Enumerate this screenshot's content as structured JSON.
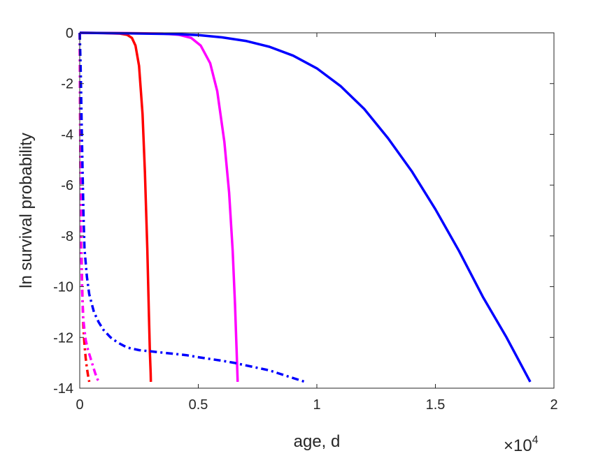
{
  "chart_data": {
    "type": "line",
    "title": "",
    "xlabel": "age, d",
    "ylabel": "ln survival probability",
    "x_multiplier": {
      "base": "×10",
      "exponent": "4"
    },
    "xlim": [
      0,
      20000
    ],
    "ylim": [
      -14,
      0
    ],
    "xticks": [
      0,
      5000,
      10000,
      15000,
      20000
    ],
    "xtick_labels": [
      "0",
      "0.5",
      "1",
      "1.5",
      "2"
    ],
    "yticks": [
      0,
      -2,
      -4,
      -6,
      -8,
      -10,
      -12,
      -14
    ],
    "ytick_labels": [
      "0",
      "-2",
      "-4",
      "-6",
      "-8",
      "-10",
      "-12",
      "-14"
    ],
    "grid": false,
    "series": [
      {
        "color": "#ff0000",
        "style": "solid",
        "x": [
          0,
          1000,
          1700,
          2000,
          2200,
          2350,
          2500,
          2650,
          2750,
          2850,
          2920,
          2960,
          2990,
          3000
        ],
        "y": [
          0,
          -0.01,
          -0.03,
          -0.08,
          -0.2,
          -0.5,
          -1.3,
          -3.2,
          -5.5,
          -8.5,
          -11.2,
          -12.6,
          -13.4,
          -13.75
        ]
      },
      {
        "color": "#ff00ff",
        "style": "solid",
        "x": [
          0,
          2000,
          3500,
          4200,
          4700,
          5100,
          5500,
          5800,
          6100,
          6300,
          6450,
          6550,
          6620,
          6660
        ],
        "y": [
          0,
          -0.01,
          -0.03,
          -0.08,
          -0.2,
          -0.5,
          -1.2,
          -2.3,
          -4.3,
          -6.3,
          -8.6,
          -10.7,
          -12.6,
          -13.75
        ]
      },
      {
        "color": "#0000ff",
        "style": "solid",
        "x": [
          0,
          2000,
          4000,
          5000,
          6000,
          7000,
          8000,
          9000,
          10000,
          11000,
          12000,
          13000,
          14000,
          15000,
          16000,
          17000,
          18000,
          19000
        ],
        "y": [
          0,
          -0.02,
          -0.05,
          -0.09,
          -0.18,
          -0.32,
          -0.55,
          -0.9,
          -1.4,
          -2.1,
          -3.0,
          -4.15,
          -5.45,
          -6.95,
          -8.6,
          -10.4,
          -12.0,
          -13.75
        ]
      },
      {
        "color": "#ff0000",
        "style": "dashdot",
        "x": [
          0,
          10,
          30,
          60,
          100,
          150,
          200,
          250,
          300,
          350,
          400
        ],
        "y": [
          0,
          -2,
          -5,
          -8,
          -10,
          -11.5,
          -12.3,
          -12.8,
          -13.2,
          -13.5,
          -13.75
        ]
      },
      {
        "color": "#ff00ff",
        "style": "dashdot",
        "x": [
          0,
          10,
          30,
          60,
          100,
          150,
          250,
          350,
          450,
          550,
          650,
          750,
          820
        ],
        "y": [
          0,
          -2.5,
          -5.5,
          -8.5,
          -10.2,
          -11.3,
          -12.1,
          -12.5,
          -12.8,
          -13.1,
          -13.4,
          -13.65,
          -13.75
        ]
      },
      {
        "color": "#0000ff",
        "style": "dashdot",
        "x": [
          0,
          40,
          80,
          120,
          160,
          200,
          300,
          400,
          600,
          800,
          1000,
          1300,
          1600,
          2000,
          2500,
          3000,
          3500,
          4000,
          4500,
          5000,
          5500,
          6000,
          6500,
          7000,
          7500,
          8000,
          8500,
          9000,
          9500
        ],
        "y": [
          0,
          -1.5,
          -3.5,
          -5.5,
          -7.2,
          -8.5,
          -9.6,
          -10.3,
          -11.0,
          -11.4,
          -11.7,
          -12.0,
          -12.2,
          -12.4,
          -12.5,
          -12.55,
          -12.6,
          -12.65,
          -12.7,
          -12.78,
          -12.85,
          -12.92,
          -13.0,
          -13.1,
          -13.2,
          -13.3,
          -13.45,
          -13.6,
          -13.75
        ]
      }
    ]
  }
}
